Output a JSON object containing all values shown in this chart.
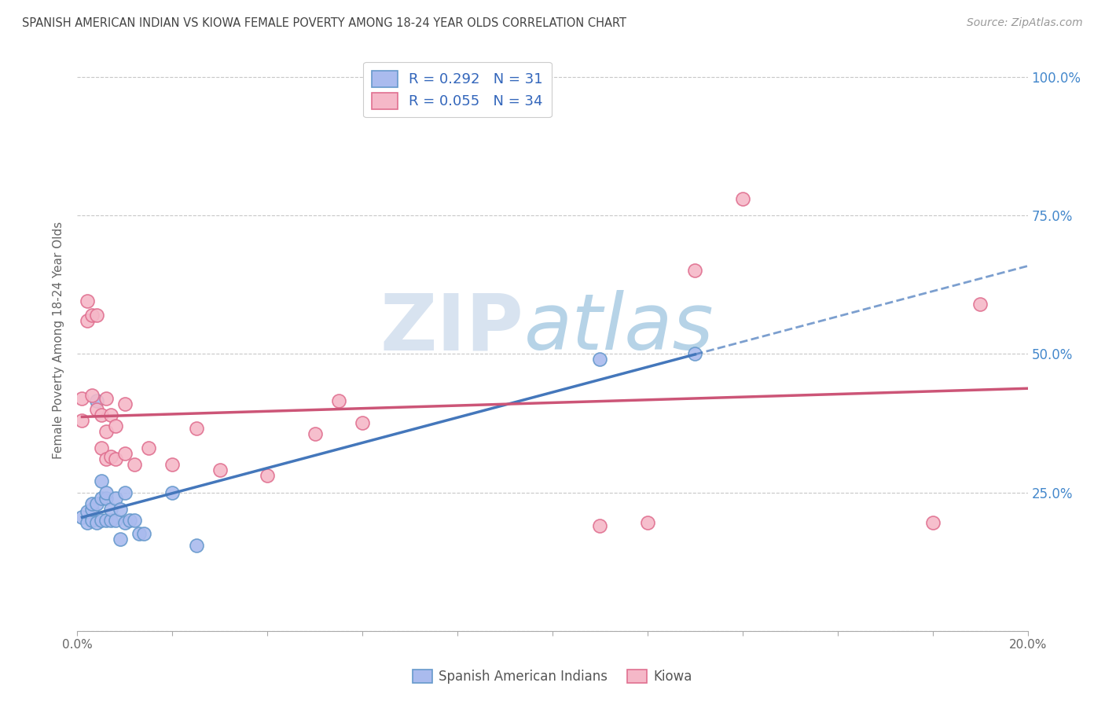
{
  "title": "SPANISH AMERICAN INDIAN VS KIOWA FEMALE POVERTY AMONG 18-24 YEAR OLDS CORRELATION CHART",
  "source": "Source: ZipAtlas.com",
  "ylabel": "Female Poverty Among 18-24 Year Olds",
  "xlim": [
    0.0,
    0.2
  ],
  "ylim": [
    0.0,
    1.05
  ],
  "ytick_positions": [
    0.0,
    0.25,
    0.5,
    0.75,
    1.0
  ],
  "ytick_labels_right": [
    "",
    "25.0%",
    "50.0%",
    "75.0%",
    "100.0%"
  ],
  "background_color": "#ffffff",
  "grid_color": "#c8c8c8",
  "legend_R1": "0.292",
  "legend_N1": "31",
  "legend_R2": "0.055",
  "legend_N2": "34",
  "blue_line_color": "#4477bb",
  "blue_marker_face": "#aabbee",
  "blue_marker_edge": "#6699cc",
  "pink_line_color": "#cc5577",
  "pink_marker_face": "#f5b8c8",
  "pink_marker_edge": "#e07090",
  "blue_scatter_x": [
    0.001,
    0.002,
    0.002,
    0.003,
    0.003,
    0.003,
    0.004,
    0.004,
    0.004,
    0.005,
    0.005,
    0.005,
    0.006,
    0.006,
    0.006,
    0.007,
    0.007,
    0.008,
    0.008,
    0.009,
    0.009,
    0.01,
    0.01,
    0.011,
    0.012,
    0.013,
    0.014,
    0.02,
    0.025,
    0.11,
    0.13
  ],
  "blue_scatter_y": [
    0.205,
    0.195,
    0.215,
    0.2,
    0.22,
    0.23,
    0.195,
    0.23,
    0.415,
    0.2,
    0.24,
    0.27,
    0.2,
    0.24,
    0.25,
    0.2,
    0.22,
    0.2,
    0.24,
    0.165,
    0.22,
    0.195,
    0.25,
    0.2,
    0.2,
    0.175,
    0.175,
    0.25,
    0.155,
    0.49,
    0.5
  ],
  "pink_scatter_x": [
    0.001,
    0.001,
    0.002,
    0.002,
    0.003,
    0.003,
    0.004,
    0.004,
    0.005,
    0.005,
    0.006,
    0.006,
    0.006,
    0.007,
    0.007,
    0.008,
    0.008,
    0.01,
    0.01,
    0.012,
    0.015,
    0.02,
    0.025,
    0.03,
    0.04,
    0.05,
    0.055,
    0.06,
    0.11,
    0.12,
    0.13,
    0.14,
    0.18,
    0.19
  ],
  "pink_scatter_y": [
    0.38,
    0.42,
    0.56,
    0.595,
    0.57,
    0.425,
    0.4,
    0.57,
    0.33,
    0.39,
    0.31,
    0.36,
    0.42,
    0.315,
    0.39,
    0.31,
    0.37,
    0.32,
    0.41,
    0.3,
    0.33,
    0.3,
    0.365,
    0.29,
    0.28,
    0.355,
    0.415,
    0.375,
    0.19,
    0.195,
    0.65,
    0.78,
    0.195,
    0.59
  ],
  "watermark_zip": "ZIP",
  "watermark_atlas": "atlas",
  "watermark_color_zip": "#b8cce4",
  "watermark_color_atlas": "#7bafd4",
  "watermark_alpha": 0.55,
  "legend_label1": "Spanish American Indians",
  "legend_label2": "Kiowa",
  "blue_trend_x_start": 0.001,
  "blue_trend_x_solid_end": 0.13,
  "blue_trend_x_dash_end": 0.2,
  "pink_trend_x_start": 0.001,
  "pink_trend_x_end": 0.2
}
